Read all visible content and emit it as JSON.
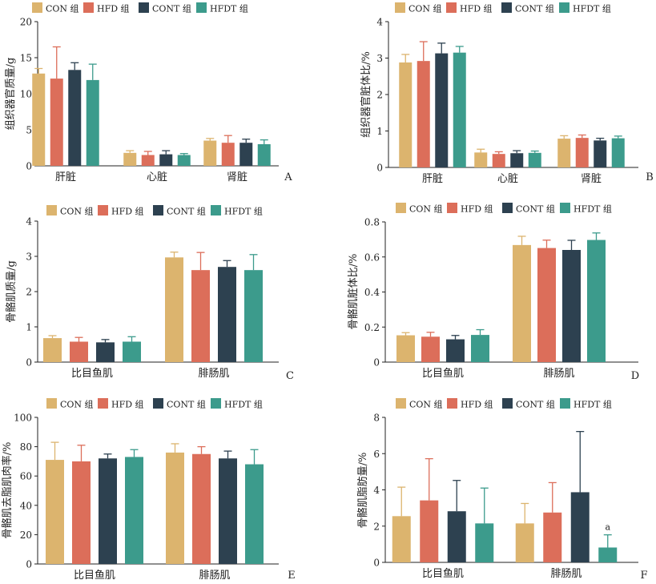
{
  "colors": {
    "CON": "#dcb46e",
    "HFD": "#dc6e5a",
    "CONT": "#2d4150",
    "HFDT": "#3c9b8c",
    "axis": "#222222"
  },
  "legend": {
    "CON": "CON 组",
    "HFD": "HFD 组",
    "CONT": "CONT 组",
    "HFDT": "HFDT 组"
  },
  "chart_data": [
    {
      "panel": "A",
      "type": "bar",
      "ylabel": "组织器官质量/g",
      "ylim": [
        0,
        20
      ],
      "yticks": [
        "0",
        "5",
        "10",
        "15",
        "20"
      ],
      "categories": [
        "肝脏",
        "心脏",
        "肾脏"
      ],
      "series": [
        {
          "name": "CON 组",
          "values": [
            12.8,
            1.8,
            3.5
          ],
          "errors": [
            0.7,
            0.3,
            0.3
          ]
        },
        {
          "name": "HFD 组",
          "values": [
            12.1,
            1.5,
            3.2
          ],
          "errors": [
            4.4,
            0.5,
            1.0
          ]
        },
        {
          "name": "CONT 组",
          "values": [
            13.3,
            1.6,
            3.2
          ],
          "errors": [
            1.0,
            0.5,
            0.5
          ]
        },
        {
          "name": "HFDT 组",
          "values": [
            11.9,
            1.5,
            3.0
          ],
          "errors": [
            2.2,
            0.2,
            0.6
          ]
        }
      ]
    },
    {
      "panel": "B",
      "type": "bar",
      "ylabel": "组织器官脏体比/%",
      "ylim": [
        0,
        4
      ],
      "yticks": [
        "0",
        "1",
        "2",
        "3",
        "4"
      ],
      "categories": [
        "肝脏",
        "心脏",
        "肾脏"
      ],
      "series": [
        {
          "name": "CON 组",
          "values": [
            2.88,
            0.41,
            0.79
          ],
          "errors": [
            0.22,
            0.09,
            0.08
          ]
        },
        {
          "name": "HFD 组",
          "values": [
            2.92,
            0.37,
            0.81
          ],
          "errors": [
            0.53,
            0.06,
            0.08
          ]
        },
        {
          "name": "CONT 组",
          "values": [
            3.13,
            0.39,
            0.74
          ],
          "errors": [
            0.28,
            0.07,
            0.06
          ]
        },
        {
          "name": "HFDT 组",
          "values": [
            3.15,
            0.4,
            0.8
          ],
          "errors": [
            0.17,
            0.05,
            0.06
          ]
        }
      ]
    },
    {
      "panel": "C",
      "type": "bar",
      "ylabel": "骨骼肌质量/g",
      "ylim": [
        0,
        4
      ],
      "yticks": [
        "0",
        "1",
        "2",
        "3",
        "4"
      ],
      "categories": [
        "比目鱼肌",
        "腓肠肌"
      ],
      "series": [
        {
          "name": "CON 组",
          "values": [
            0.68,
            2.97
          ],
          "errors": [
            0.07,
            0.15
          ]
        },
        {
          "name": "HFD 组",
          "values": [
            0.58,
            2.61
          ],
          "errors": [
            0.12,
            0.5
          ]
        },
        {
          "name": "CONT 组",
          "values": [
            0.56,
            2.7
          ],
          "errors": [
            0.08,
            0.18
          ]
        },
        {
          "name": "HFDT 组",
          "values": [
            0.58,
            2.61
          ],
          "errors": [
            0.14,
            0.44
          ]
        }
      ]
    },
    {
      "panel": "D",
      "type": "bar",
      "ylabel": "骨骼肌脏体比/%",
      "ylim": [
        0,
        0.8
      ],
      "yticks": [
        "0",
        "0.2",
        "0.4",
        "0.6",
        "0.8"
      ],
      "categories": [
        "比目鱼肌",
        "腓肠肌"
      ],
      "series": [
        {
          "name": "CON 组",
          "values": [
            0.153,
            0.668
          ],
          "errors": [
            0.015,
            0.05
          ]
        },
        {
          "name": "HFD 组",
          "values": [
            0.145,
            0.651
          ],
          "errors": [
            0.025,
            0.045
          ]
        },
        {
          "name": "CONT 组",
          "values": [
            0.13,
            0.64
          ],
          "errors": [
            0.022,
            0.055
          ]
        },
        {
          "name": "HFDT 组",
          "values": [
            0.155,
            0.697
          ],
          "errors": [
            0.03,
            0.04
          ]
        }
      ]
    },
    {
      "panel": "E",
      "type": "bar",
      "ylabel": "骨骼肌去脂肌肉率/%",
      "ylim": [
        0,
        100
      ],
      "yticks": [
        "0",
        "20",
        "40",
        "60",
        "80",
        "100"
      ],
      "categories": [
        "比目鱼肌",
        "腓肠肌"
      ],
      "series": [
        {
          "name": "CON 组",
          "values": [
            71,
            76
          ],
          "errors": [
            12,
            6
          ]
        },
        {
          "name": "HFD 组",
          "values": [
            70,
            75
          ],
          "errors": [
            11,
            5
          ]
        },
        {
          "name": "CONT 组",
          "values": [
            72,
            72
          ],
          "errors": [
            3,
            5
          ]
        },
        {
          "name": "HFDT 组",
          "values": [
            73,
            68
          ],
          "errors": [
            5,
            10
          ]
        }
      ]
    },
    {
      "panel": "F",
      "type": "bar",
      "ylabel": "骨骼肌脂肪量/%",
      "ylim": [
        0,
        8
      ],
      "yticks": [
        "0",
        "2",
        "4",
        "6",
        "8"
      ],
      "categories": [
        "比目鱼肌",
        "腓肠肌"
      ],
      "series": [
        {
          "name": "CON 组",
          "values": [
            2.55,
            2.15
          ],
          "errors": [
            1.6,
            1.1
          ]
        },
        {
          "name": "HFD 组",
          "values": [
            3.42,
            2.75
          ],
          "errors": [
            2.3,
            1.65
          ]
        },
        {
          "name": "CONT 组",
          "values": [
            2.82,
            3.87
          ],
          "errors": [
            1.7,
            3.35
          ]
        },
        {
          "name": "HFDT 组",
          "values": [
            2.15,
            0.82
          ],
          "errors": [
            1.95,
            0.7
          ]
        }
      ],
      "annotations": [
        {
          "series": 3,
          "category": 1,
          "text": "a"
        }
      ]
    }
  ]
}
